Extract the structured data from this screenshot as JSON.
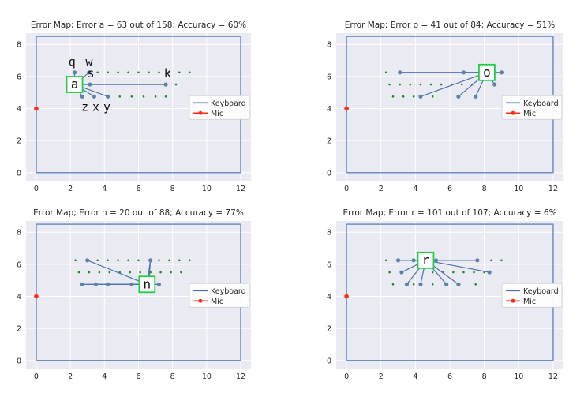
{
  "colors": {
    "plot_bg": "#eaeaf2",
    "grid": "#ffffff",
    "keyboard_line": "#4c72b0",
    "keyboard_point": "#5b82a8",
    "mic": "#ff2a1a",
    "dots": "#1a8a1a",
    "highlight_box": "#22cc44",
    "frame": "#6a8fc4"
  },
  "chart_data": [
    {
      "type": "line",
      "title": "Error Map; Error a = 63 out of 158; Accuracy =    60%",
      "xlim": [
        -0.6,
        12.6
      ],
      "ylim": [
        -0.5,
        8.7
      ],
      "xticks": [
        0,
        2,
        4,
        6,
        8,
        10,
        12
      ],
      "yticks": [
        0,
        2,
        4,
        6,
        8
      ],
      "legend": {
        "position": "right",
        "entries": [
          "Keyboard",
          "Mic"
        ]
      },
      "boundary": [
        [
          0,
          0
        ],
        [
          12,
          0
        ],
        [
          12,
          8.5
        ],
        [
          0,
          8.5
        ],
        [
          0,
          0
        ]
      ],
      "mic_point": [
        0,
        4
      ],
      "dots": [
        [
          3.6,
          6.25
        ],
        [
          4.2,
          6.25
        ],
        [
          4.8,
          6.25
        ],
        [
          5.4,
          6.25
        ],
        [
          6.0,
          6.25
        ],
        [
          6.6,
          6.25
        ],
        [
          7.2,
          6.25
        ],
        [
          7.8,
          6.25
        ],
        [
          8.4,
          6.25
        ],
        [
          9.0,
          6.25
        ],
        [
          8.2,
          5.5
        ],
        [
          4.9,
          4.75
        ],
        [
          5.6,
          4.75
        ],
        [
          6.3,
          4.75
        ],
        [
          7.0,
          4.75
        ],
        [
          7.6,
          4.75
        ]
      ],
      "target": {
        "label": "a",
        "pos": [
          2.25,
          5.5
        ]
      },
      "connections": [
        [
          2.25,
          6.25
        ],
        [
          3.1,
          6.25
        ],
        [
          3.15,
          5.5
        ],
        [
          7.6,
          5.5
        ],
        [
          2.7,
          4.75
        ],
        [
          3.4,
          4.75
        ],
        [
          4.2,
          4.75
        ]
      ],
      "segments": [
        [
          [
            3.15,
            5.5
          ],
          [
            7.6,
            5.5
          ]
        ]
      ],
      "key_labels": [
        {
          "text": "q",
          "pos": [
            2.1,
            6.9
          ]
        },
        {
          "text": "w",
          "pos": [
            3.1,
            6.9
          ]
        },
        {
          "text": "s",
          "pos": [
            3.2,
            6.2
          ]
        },
        {
          "text": "k",
          "pos": [
            7.7,
            6.2
          ]
        },
        {
          "text": "z",
          "pos": [
            2.85,
            4.1
          ]
        },
        {
          "text": "x",
          "pos": [
            3.5,
            4.1
          ]
        },
        {
          "text": "y",
          "pos": [
            4.15,
            4.1
          ]
        }
      ]
    },
    {
      "type": "line",
      "title": "Error Map; Error o = 41 out of 84; Accuracy =    51%",
      "xlim": [
        -0.6,
        12.6
      ],
      "ylim": [
        -0.5,
        8.7
      ],
      "xticks": [
        0,
        2,
        4,
        6,
        8,
        10,
        12
      ],
      "yticks": [
        0,
        2,
        4,
        6,
        8
      ],
      "legend": {
        "position": "right",
        "entries": [
          "Keyboard",
          "Mic"
        ]
      },
      "boundary": [
        [
          0,
          0
        ],
        [
          12,
          0
        ],
        [
          12,
          8.5
        ],
        [
          0,
          8.5
        ],
        [
          0,
          0
        ]
      ],
      "mic_point": [
        0,
        4
      ],
      "dots": [
        [
          2.3,
          6.25
        ],
        [
          2.5,
          5.5
        ],
        [
          3.1,
          5.5
        ],
        [
          3.7,
          5.5
        ],
        [
          4.3,
          5.5
        ],
        [
          4.9,
          5.5
        ],
        [
          5.5,
          5.5
        ],
        [
          6.1,
          5.5
        ],
        [
          6.7,
          5.5
        ],
        [
          7.3,
          5.5
        ],
        [
          2.7,
          4.75
        ],
        [
          3.3,
          4.75
        ],
        [
          3.9,
          4.75
        ],
        [
          5.0,
          4.75
        ]
      ],
      "target": {
        "label": "o",
        "pos": [
          8.15,
          6.25
        ]
      },
      "connections": [
        [
          3.1,
          6.25
        ],
        [
          6.8,
          6.25
        ],
        [
          9.0,
          6.25
        ],
        [
          8.6,
          5.5
        ],
        [
          4.3,
          4.75
        ],
        [
          6.5,
          4.75
        ],
        [
          7.5,
          4.75
        ]
      ],
      "segments": [
        [
          [
            3.1,
            6.25
          ],
          [
            9.0,
            6.25
          ]
        ]
      ],
      "key_labels": []
    },
    {
      "type": "line",
      "title": "Error Map; Error n = 20 out of 88; Accuracy =    77%",
      "xlim": [
        -0.6,
        12.6
      ],
      "ylim": [
        -0.5,
        8.7
      ],
      "xticks": [
        0,
        2,
        4,
        6,
        8,
        10,
        12
      ],
      "yticks": [
        0,
        2,
        4,
        6,
        8
      ],
      "legend": {
        "position": "right",
        "entries": [
          "Keyboard",
          "Mic"
        ]
      },
      "boundary": [
        [
          0,
          0
        ],
        [
          12,
          0
        ],
        [
          12,
          8.5
        ],
        [
          0,
          8.5
        ],
        [
          0,
          0
        ]
      ],
      "mic_point": [
        0,
        4
      ],
      "dots": [
        [
          2.3,
          6.25
        ],
        [
          3.6,
          6.25
        ],
        [
          4.2,
          6.25
        ],
        [
          4.8,
          6.25
        ],
        [
          5.4,
          6.25
        ],
        [
          6.0,
          6.25
        ],
        [
          7.2,
          6.25
        ],
        [
          7.8,
          6.25
        ],
        [
          8.4,
          6.25
        ],
        [
          9.0,
          6.25
        ],
        [
          2.5,
          5.5
        ],
        [
          3.1,
          5.5
        ],
        [
          3.7,
          5.5
        ],
        [
          4.3,
          5.5
        ],
        [
          4.9,
          5.5
        ],
        [
          5.5,
          5.5
        ],
        [
          6.1,
          5.5
        ],
        [
          6.7,
          5.5
        ],
        [
          7.3,
          5.5
        ],
        [
          7.9,
          5.5
        ],
        [
          8.5,
          5.5
        ]
      ],
      "target": {
        "label": "n",
        "pos": [
          6.5,
          4.75
        ]
      },
      "connections": [
        [
          3.0,
          6.25
        ],
        [
          6.7,
          6.25
        ],
        [
          2.7,
          4.75
        ],
        [
          3.5,
          4.75
        ],
        [
          4.2,
          4.75
        ],
        [
          5.6,
          4.75
        ],
        [
          7.2,
          4.75
        ]
      ],
      "segments": [
        [
          [
            2.7,
            4.75
          ],
          [
            7.2,
            4.75
          ]
        ],
        [
          [
            6.7,
            6.25
          ],
          [
            6.6,
            4.75
          ]
        ]
      ],
      "key_labels": []
    },
    {
      "type": "line",
      "title": "Error Map; Error r = 101 out of 107; Accuracy =     6%",
      "xlim": [
        -0.6,
        12.6
      ],
      "ylim": [
        -0.5,
        8.7
      ],
      "xticks": [
        0,
        2,
        4,
        6,
        8,
        10,
        12
      ],
      "yticks": [
        0,
        2,
        4,
        6,
        8
      ],
      "legend": {
        "position": "right",
        "entries": [
          "Keyboard",
          "Mic"
        ]
      },
      "boundary": [
        [
          0,
          0
        ],
        [
          12,
          0
        ],
        [
          12,
          8.5
        ],
        [
          0,
          8.5
        ],
        [
          0,
          0
        ]
      ],
      "mic_point": [
        0,
        4
      ],
      "dots": [
        [
          2.3,
          6.25
        ],
        [
          8.4,
          6.25
        ],
        [
          9.0,
          6.25
        ],
        [
          2.5,
          5.5
        ],
        [
          2.7,
          4.75
        ],
        [
          5.0,
          5.5
        ],
        [
          5.6,
          5.5
        ],
        [
          6.2,
          5.5
        ],
        [
          6.8,
          5.5
        ],
        [
          7.4,
          5.5
        ],
        [
          8.0,
          5.5
        ],
        [
          3.9,
          4.75
        ],
        [
          5.0,
          4.75
        ],
        [
          7.5,
          4.75
        ]
      ],
      "target": {
        "label": "r",
        "pos": [
          4.6,
          6.25
        ]
      },
      "connections": [
        [
          3.0,
          6.25
        ],
        [
          3.9,
          6.25
        ],
        [
          5.2,
          6.25
        ],
        [
          7.6,
          6.25
        ],
        [
          3.2,
          5.5
        ],
        [
          8.3,
          5.5
        ],
        [
          3.5,
          4.75
        ],
        [
          4.3,
          4.75
        ],
        [
          5.8,
          4.75
        ],
        [
          6.5,
          4.75
        ]
      ],
      "segments": [
        [
          [
            3.0,
            6.25
          ],
          [
            7.6,
            6.25
          ]
        ]
      ],
      "key_labels": []
    }
  ]
}
